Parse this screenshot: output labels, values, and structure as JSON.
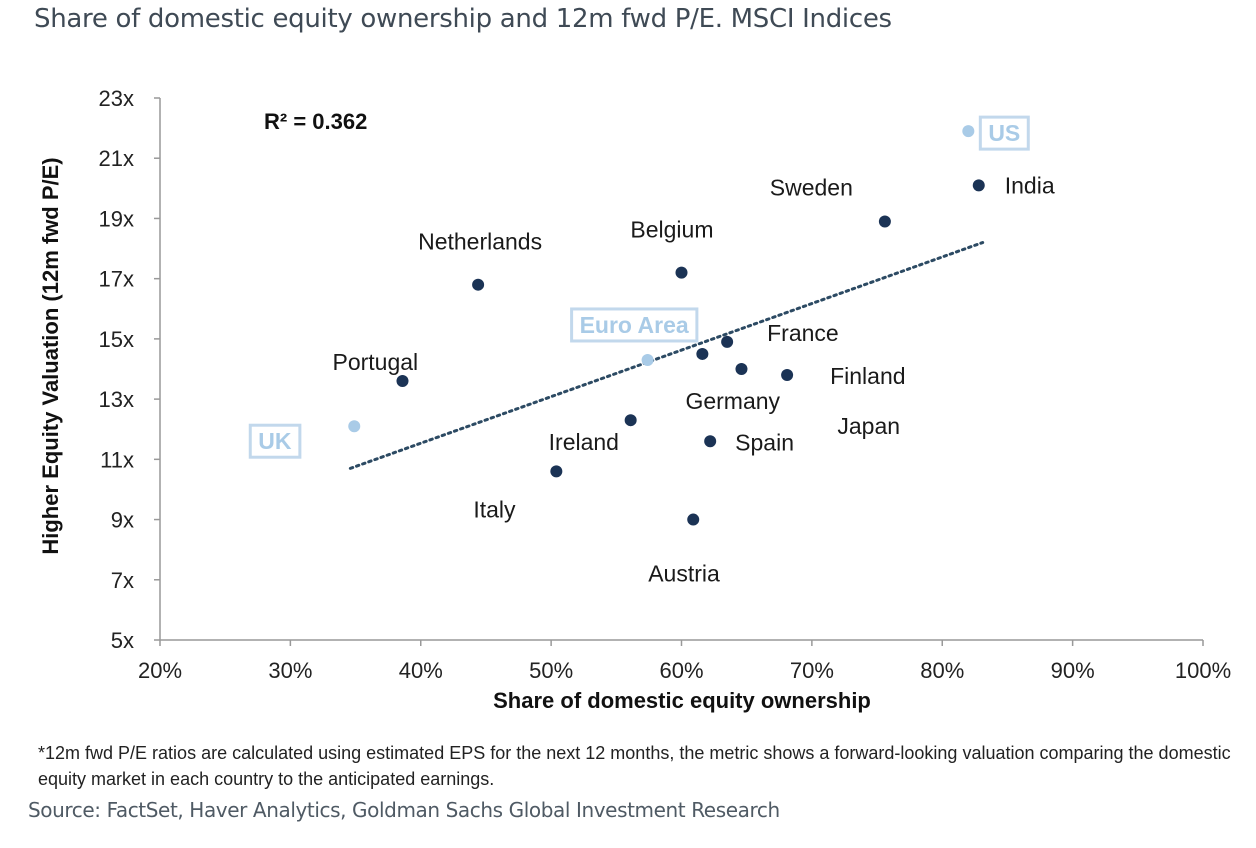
{
  "title": "Share of domestic equity ownership and 12m fwd P/E. MSCI Indices",
  "note": "*12m fwd P/E ratios are calculated using estimated EPS for the next 12 months, the metric shows a forward-looking valuation comparing the domestic equity market in each country to the anticipated earnings.",
  "source": "Source: FactSet, Haver Analytics, Goldman Sachs Global Investment Research",
  "chart_data": {
    "type": "scatter",
    "xlabel": "Share of domestic equity ownership",
    "ylabel": "Higher Equity Valuation (12m fwd P/E)",
    "xlim": [
      20,
      100
    ],
    "ylim": [
      5,
      23
    ],
    "xticks": [
      "20%",
      "30%",
      "40%",
      "50%",
      "60%",
      "70%",
      "80%",
      "90%",
      "100%"
    ],
    "yticks": [
      "5x",
      "7x",
      "9x",
      "11x",
      "13x",
      "15x",
      "17x",
      "19x",
      "21x",
      "23x"
    ],
    "grid": false,
    "annotation": "R² = 0.362",
    "trendline": {
      "style": "dotted",
      "x": [
        34.6,
        83.1
      ],
      "y": [
        10.7,
        18.2
      ]
    },
    "colors": {
      "country": "#1b3355",
      "aggregate": "#a9cbe7",
      "trend": "#2c4a63"
    },
    "points": [
      {
        "name": "US",
        "x": 82.0,
        "y": 21.9,
        "aggregate": true
      },
      {
        "name": "India",
        "x": 82.8,
        "y": 20.1
      },
      {
        "name": "Sweden",
        "x": 75.6,
        "y": 18.9
      },
      {
        "name": "Belgium",
        "x": 60.0,
        "y": 17.2
      },
      {
        "name": "Netherlands",
        "x": 44.4,
        "y": 16.8
      },
      {
        "name": "Euro Area",
        "x": 57.4,
        "y": 14.3,
        "aggregate": true
      },
      {
        "name": "France",
        "x": 63.5,
        "y": 14.9
      },
      {
        "name": "Japan",
        "x": 61.6,
        "y": 14.5
      },
      {
        "name": "Germany",
        "x": 64.6,
        "y": 14.0
      },
      {
        "name": "Finland",
        "x": 68.1,
        "y": 13.8
      },
      {
        "name": "Portugal",
        "x": 38.6,
        "y": 13.6
      },
      {
        "name": "UK",
        "x": 34.9,
        "y": 12.1,
        "aggregate": true
      },
      {
        "name": "Ireland",
        "x": 56.1,
        "y": 12.3
      },
      {
        "name": "Spain",
        "x": 62.2,
        "y": 11.6
      },
      {
        "name": "Italy",
        "x": 50.4,
        "y": 10.6
      },
      {
        "name": "Austria",
        "x": 60.9,
        "y": 9.0
      }
    ]
  }
}
